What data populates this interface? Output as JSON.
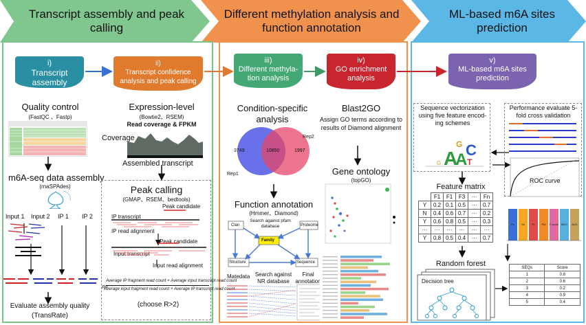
{
  "headers": {
    "h1": "Transcript assembly and peak calling",
    "h2": "Different methylation analysis and function annotation",
    "h3": "ML-based m6A sites prediction"
  },
  "steps": {
    "s1": {
      "num": "i)",
      "label": "Transcript assembly"
    },
    "s2": {
      "num": "ii)",
      "label": "Transcript confidence analysis and peak calling"
    },
    "s3": {
      "num": "iii)",
      "label": "Different methyla-tion analysis"
    },
    "s4": {
      "num": "iv)",
      "label": "GO enrichment analysis"
    },
    "s5": {
      "num": "v)",
      "label": "ML-based m6A sites prediction"
    }
  },
  "panel1": {
    "quality_control": "Quality control",
    "qc_tools": "(FastQC 、Fastp)",
    "assembly_title": "m6A-seq data assembly",
    "assembly_tool": "(rnaSPAdes)",
    "inputs": [
      "Input 1",
      "Input 2",
      "IP 1",
      "IP 2"
    ],
    "evaluate": "Evaluate assembly quality",
    "evaluate_tool": "(TransRate)"
  },
  "panel2": {
    "expression": "Expression-level",
    "expression_tools": "(Bowtie2、RSEM)",
    "read_cov": "Read  coverage & FPKM",
    "coverage": "Coverage",
    "assembled": "Assembled transcript",
    "peak_calling": "Peak calling",
    "peak_tools": "(GMAP、RSEM、bedtools)",
    "peak_candidate": "Peak candidate",
    "ip_transcript": "IP transcript",
    "ip_read": "IP read alignment",
    "peak_candidate2": "Peak candidate",
    "input_transcript": "Input transcript",
    "input_read": "Input read alignment",
    "formula_num": "Average IP fragment read count × Average input transcript read count",
    "formula_den": "Average input fragment read count × Average IP transcript read count",
    "formula_prefix": "R=",
    "choose": "(choose R>2)"
  },
  "panel3": {
    "condition": "Condition-specific analysis",
    "venn": {
      "left": "3749",
      "middle": "10850",
      "right": "1997",
      "rep1": "Rep1",
      "rep2": "Rep2"
    },
    "function": "Function annotation",
    "function_tools": "(Hmmer、Diamond)",
    "clan": "Clan",
    "search_pfam": "Search against pfam database",
    "proteome": "Proteome",
    "family": "Family",
    "structure": "Structure",
    "sequence": "Sequence",
    "metadata": "Matedata",
    "search_nr": "Search against NR database",
    "final": "Final annotation"
  },
  "panel4": {
    "blast": "Blast2GO",
    "assign": "Assign GO terms according to results of  Diamond alignment",
    "gene_ontology": "Gene ontology",
    "topgo": "(topGO)"
  },
  "panel5": {
    "seq_vec": "Sequence vectorization using five feature encod-ing schemes",
    "perf": "Performance evaluate 5-fold cross validation",
    "roc": "ROC curve",
    "feature_matrix": "Feature matrix",
    "matrix_header": [
      "",
      "F1",
      "F1",
      "F3",
      "···",
      "Fn"
    ],
    "matrix_rows": [
      [
        "Y",
        "0.2",
        "0.1",
        "0.5",
        "···",
        "0.7"
      ],
      [
        "N",
        "0.4",
        "0.6",
        "0.7",
        "···",
        "0.2"
      ],
      [
        "Y",
        "0.6",
        "0.8",
        "0.5",
        "···",
        "0.3"
      ],
      [
        "···",
        "···",
        "···",
        "···",
        "···",
        "···"
      ],
      [
        "Y",
        "0.8",
        "0.5",
        "0.4",
        "···",
        "0.7"
      ]
    ],
    "random_forest": "Random forest",
    "decision_tree": "Decision tree",
    "bar_labels": [
      "Pc",
      "Se",
      "Pr",
      "Pct",
      "F-score",
      "MCC",
      "AUC"
    ],
    "seq_header": [
      "SEQs",
      "Score"
    ],
    "seq_rows": [
      [
        "1",
        "0.8"
      ],
      [
        "2",
        "0.6"
      ],
      [
        "3",
        "0.2"
      ],
      [
        "4",
        "0.9"
      ],
      [
        "5",
        "0.4"
      ]
    ]
  },
  "colors": {
    "green": "#5fb87a",
    "orange": "#e98a3c",
    "blue": "#3aa3d6",
    "teal": "#2a8a8a",
    "purple": "#7b63b0",
    "red": "#d03a3a",
    "dgreen": "#3c9a62"
  }
}
